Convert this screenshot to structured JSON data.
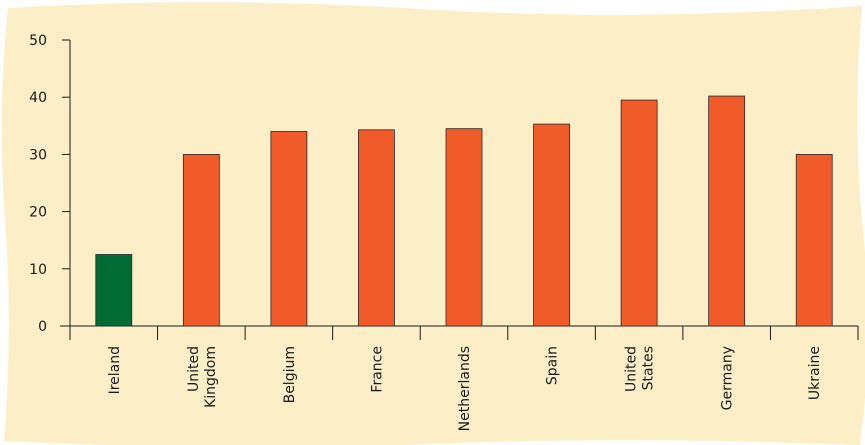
{
  "chart_data": {
    "type": "bar",
    "title": "",
    "xlabel": "",
    "ylabel": "",
    "ylim": [
      0,
      50
    ],
    "yticks": [
      0,
      10,
      20,
      30,
      40,
      50
    ],
    "grid": false,
    "legend": "none",
    "background_color": "#FCEFC8",
    "categories": [
      [
        "Ireland"
      ],
      [
        "United",
        "Kingdom"
      ],
      [
        "Belgium"
      ],
      [
        "France"
      ],
      [
        "Netherlands"
      ],
      [
        "Spain"
      ],
      [
        "United",
        "States"
      ],
      [
        "Germany"
      ],
      [
        "Ukraine"
      ]
    ],
    "values": [
      12.5,
      30,
      34,
      34.3,
      34.5,
      35.3,
      39.5,
      40.2,
      30
    ],
    "bar_colors": [
      "#006B35",
      "#F15A29",
      "#F15A29",
      "#F15A29",
      "#F15A29",
      "#F15A29",
      "#F15A29",
      "#F15A29",
      "#F15A29"
    ]
  }
}
